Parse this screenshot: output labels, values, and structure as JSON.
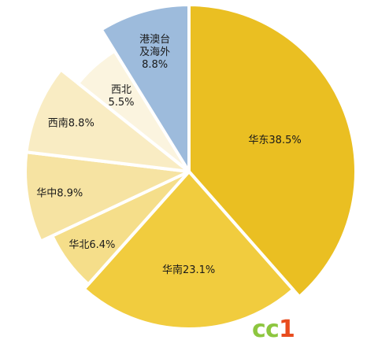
{
  "chart_data": {
    "type": "pie",
    "slices": [
      {
        "name": "华东",
        "label_lines": [
          "华东38.5%"
        ],
        "value": 38.5,
        "color": "#EABF22"
      },
      {
        "name": "华南",
        "label_lines": [
          "华南23.1%"
        ],
        "value": 23.1,
        "color": "#F1CC3E"
      },
      {
        "name": "华北",
        "label_lines": [
          "华北6.4%"
        ],
        "value": 6.4,
        "color": "#F5DE8A"
      },
      {
        "name": "华中",
        "label_lines": [
          "华中8.9%"
        ],
        "value": 8.9,
        "color": "#F6E3A2"
      },
      {
        "name": "西南",
        "label_lines": [
          "西南8.8%"
        ],
        "value": 8.8,
        "color": "#F9ECC3"
      },
      {
        "name": "西北",
        "label_lines": [
          "西北",
          "5.5%"
        ],
        "value": 5.5,
        "color": "#FBF4DF"
      },
      {
        "name": "港澳台及海外",
        "label_lines": [
          "港澳台",
          "及海外",
          "8.8%"
        ],
        "value": 8.8,
        "color": "#9DBBDC"
      }
    ],
    "start": "top",
    "direction": "clockwise"
  },
  "watermark": {
    "text": "cc1",
    "colors": [
      "#8DC63F",
      "#E84C1E"
    ]
  }
}
